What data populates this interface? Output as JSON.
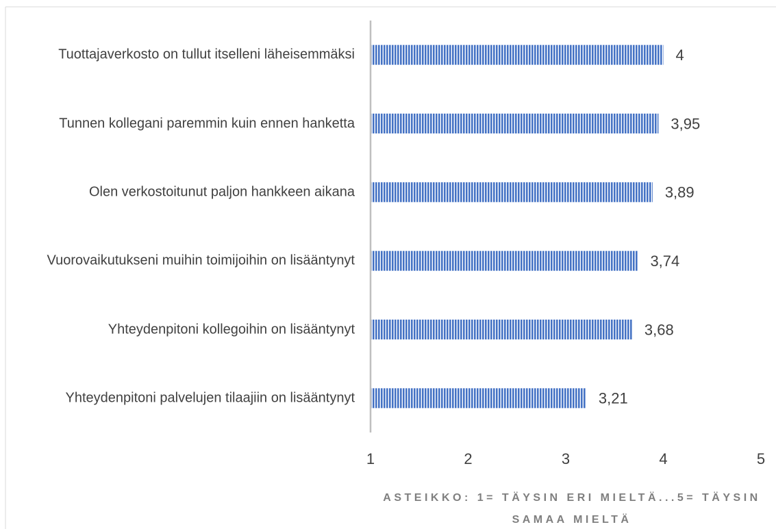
{
  "chart_data": {
    "type": "bar",
    "orientation": "horizontal",
    "categories": [
      "Tuottajaverkosto on tullut itselleni läheisemmäksi",
      "Tunnen kollegani paremmin kuin ennen hanketta",
      "Olen verkostoitunut paljon hankkeen aikana",
      "Vuorovaikutukseni muihin toimijoihin on lisääntynyt",
      "Yhteydenpitoni kollegoihin on lisääntynyt",
      "Yhteydenpitoni palvelujen tilaajiin on lisääntynyt"
    ],
    "values": [
      4,
      3.95,
      3.89,
      3.74,
      3.68,
      3.21
    ],
    "value_labels": [
      "4",
      "3,95",
      "3,89",
      "3,74",
      "3,68",
      "3,21"
    ],
    "color": "#4472c4",
    "xlim": [
      1,
      5
    ],
    "xticks": [
      1,
      2,
      3,
      4,
      5
    ],
    "x_label": "ASTEIKKO: 1= TÄYSIN ERI MIELTÄ...5= TÄYSIN SAMAA MIELTÄ"
  }
}
